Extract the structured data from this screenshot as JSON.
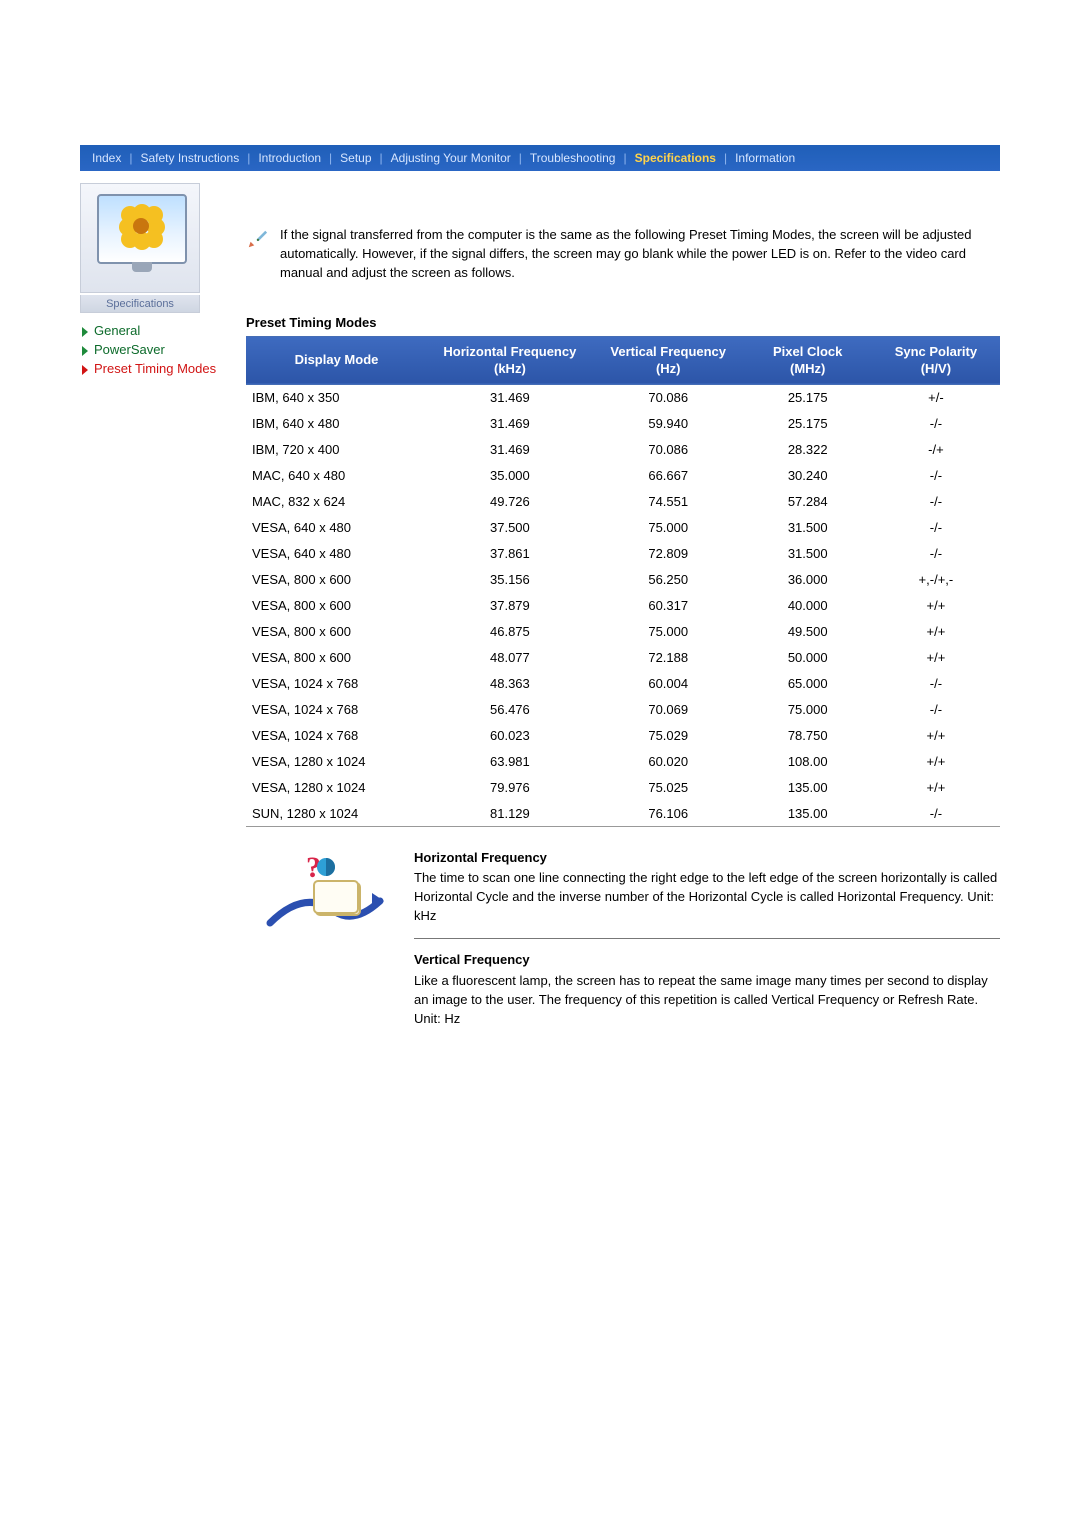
{
  "nav": {
    "items": [
      {
        "label": "Index",
        "active": false
      },
      {
        "label": "Safety Instructions",
        "active": false
      },
      {
        "label": "Introduction",
        "active": false
      },
      {
        "label": "Setup",
        "active": false
      },
      {
        "label": "Adjusting Your Monitor",
        "active": false
      },
      {
        "label": "Troubleshooting",
        "active": false
      },
      {
        "label": "Specifications",
        "active": true
      },
      {
        "label": "Information",
        "active": false
      }
    ]
  },
  "sidebar": {
    "caption": "Specifications",
    "links": [
      {
        "label": "General",
        "color": "green",
        "active": false
      },
      {
        "label": "PowerSaver",
        "color": "green",
        "active": false
      },
      {
        "label": "Preset Timing Modes",
        "color": "red",
        "active": true
      }
    ]
  },
  "intro": {
    "text": "If the signal transferred from the computer is the same as the following Preset Timing Modes, the screen will be adjusted automatically. However, if the signal differs, the screen may go blank while the power LED is on. Refer to the video card manual and adjust the screen as follows."
  },
  "section_title": "Preset Timing Modes",
  "table": {
    "headers": [
      "Display Mode",
      "Horizontal Frequency\n(kHz)",
      "Vertical Frequency\n(Hz)",
      "Pixel Clock\n(MHz)",
      "Sync Polarity\n(H/V)"
    ],
    "rows": [
      [
        "IBM, 640 x 350",
        "31.469",
        "70.086",
        "25.175",
        "+/-"
      ],
      [
        "IBM, 640 x 480",
        "31.469",
        "59.940",
        "25.175",
        "-/-"
      ],
      [
        "IBM, 720 x 400",
        "31.469",
        "70.086",
        "28.322",
        "-/+"
      ],
      [
        "MAC, 640 x 480",
        "35.000",
        "66.667",
        "30.240",
        "-/-"
      ],
      [
        "MAC, 832 x 624",
        "49.726",
        "74.551",
        "57.284",
        "-/-"
      ],
      [
        "VESA, 640 x 480",
        "37.500",
        "75.000",
        "31.500",
        "-/-"
      ],
      [
        "VESA, 640 x 480",
        "37.861",
        "72.809",
        "31.500",
        "-/-"
      ],
      [
        "VESA, 800 x 600",
        "35.156",
        "56.250",
        "36.000",
        "+,-/+,-"
      ],
      [
        "VESA, 800 x 600",
        "37.879",
        "60.317",
        "40.000",
        "+/+"
      ],
      [
        "VESA, 800 x 600",
        "46.875",
        "75.000",
        "49.500",
        "+/+"
      ],
      [
        "VESA, 800 x 600",
        "48.077",
        "72.188",
        "50.000",
        "+/+"
      ],
      [
        "VESA, 1024 x 768",
        "48.363",
        "60.004",
        "65.000",
        "-/-"
      ],
      [
        "VESA, 1024 x 768",
        "56.476",
        "70.069",
        "75.000",
        "-/-"
      ],
      [
        "VESA, 1024 x 768",
        "60.023",
        "75.029",
        "78.750",
        "+/+"
      ],
      [
        "VESA, 1280 x 1024",
        "63.981",
        "60.020",
        "108.00",
        "+/+"
      ],
      [
        "VESA, 1280 x 1024",
        "79.976",
        "75.025",
        "135.00",
        "+/+"
      ],
      [
        "SUN, 1280 x 1024",
        "81.129",
        "76.106",
        "135.00",
        "-/-"
      ]
    ],
    "col_widths": [
      "24%",
      "22%",
      "20%",
      "17%",
      "17%"
    ]
  },
  "defs": {
    "items": [
      {
        "title": "Horizontal Frequency",
        "body": "The time to scan one line connecting the right edge to the left edge of the screen horizontally is called Horizontal Cycle and the inverse number of the Horizontal Cycle is called Horizontal Frequency. Unit: kHz"
      },
      {
        "title": "Vertical Frequency",
        "body": "Like a fluorescent lamp, the screen has to repeat the same image many times per second to display an image to the user. The frequency of this repetition is called Vertical Frequency or Refresh Rate. Unit: Hz"
      }
    ]
  },
  "colors": {
    "nav_bg": "#2a62c0",
    "header_bg": "#3560b4",
    "active_nav": "#ffd34a"
  }
}
